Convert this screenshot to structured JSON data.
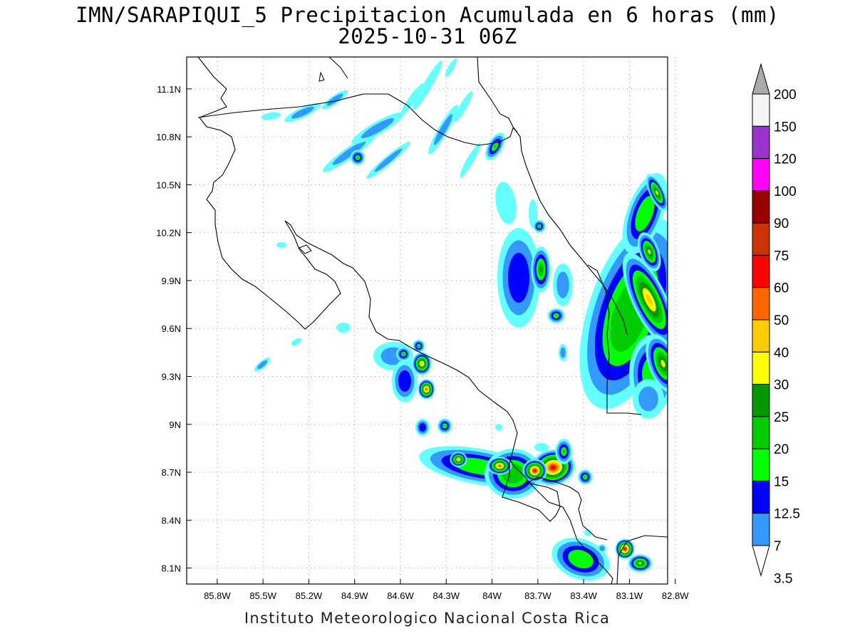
{
  "title": {
    "line1": "IMN/SARAPIQUI_5 Precipitacion Acumulada en 6 horas (mm)",
    "line2": "2025-10-31 06Z"
  },
  "footer": "Instituto Meteorologico Nacional Costa Rica",
  "map": {
    "lon_range": [
      -86.0,
      -82.85
    ],
    "lat_range": [
      8.0,
      11.3
    ],
    "x_ticks": [
      {
        "v": -85.8,
        "label": "85.8W"
      },
      {
        "v": -85.5,
        "label": "85.5W"
      },
      {
        "v": -85.2,
        "label": "85.2W"
      },
      {
        "v": -84.9,
        "label": "84.9W"
      },
      {
        "v": -84.6,
        "label": "84.6W"
      },
      {
        "v": -84.3,
        "label": "84.3W"
      },
      {
        "v": -84.0,
        "label": "84W"
      },
      {
        "v": -83.7,
        "label": "83.7W"
      },
      {
        "v": -83.4,
        "label": "83.4W"
      },
      {
        "v": -83.1,
        "label": "83.1W"
      },
      {
        "v": -82.8,
        "label": "82.8W"
      }
    ],
    "y_ticks": [
      {
        "v": 11.1,
        "label": "11.1N"
      },
      {
        "v": 10.8,
        "label": "10.8N"
      },
      {
        "v": 10.5,
        "label": "10.5N"
      },
      {
        "v": 10.2,
        "label": "10.2N"
      },
      {
        "v": 9.9,
        "label": "9.9N"
      },
      {
        "v": 9.6,
        "label": "9.6N"
      },
      {
        "v": 9.3,
        "label": "9.3N"
      },
      {
        "v": 9.0,
        "label": "9N"
      },
      {
        "v": 8.7,
        "label": "8.7N"
      },
      {
        "v": 8.4,
        "label": "8.4N"
      },
      {
        "v": 8.1,
        "label": "8.1N"
      }
    ],
    "grid": "dotted",
    "colors": [
      "#66ffff",
      "#3399ff",
      "#0000ff",
      "#00ff00",
      "#00cc00",
      "#009900",
      "#ffff00",
      "#ffcc00",
      "#ff6600",
      "#ff0000",
      "#cc3300",
      "#990000",
      "#ff00ff",
      "#9933cc",
      "#f5f5f5",
      "#aaaaaa"
    ],
    "levels": [
      "3.5",
      "7",
      "12.5",
      "15",
      "20",
      "25",
      "30",
      "40",
      "50",
      "60",
      "75",
      "90",
      "100",
      "120",
      "150",
      "200"
    ],
    "rain_cells": [
      {
        "lon": -83.6,
        "lat": 8.73,
        "rx": 0.09,
        "ry": 0.07,
        "rot": -10,
        "lvl": 9
      },
      {
        "lon": -83.72,
        "lat": 8.71,
        "rx": 0.05,
        "ry": 0.045,
        "rot": 0,
        "lvl": 9
      },
      {
        "lon": -83.95,
        "lat": 8.74,
        "rx": 0.05,
        "ry": 0.035,
        "rot": 0,
        "lvl": 8
      },
      {
        "lon": -84.22,
        "lat": 8.78,
        "rx": 0.035,
        "ry": 0.03,
        "rot": 0,
        "lvl": 7
      },
      {
        "lon": -83.53,
        "lat": 8.83,
        "rx": 0.035,
        "ry": 0.05,
        "rot": 0,
        "lvl": 4
      },
      {
        "lon": -84.46,
        "lat": 9.38,
        "rx": 0.04,
        "ry": 0.045,
        "rot": 0,
        "lvl": 7
      },
      {
        "lon": -84.43,
        "lat": 9.22,
        "rx": 0.035,
        "ry": 0.04,
        "rot": 0,
        "lvl": 8
      },
      {
        "lon": -84.31,
        "lat": 8.99,
        "rx": 0.03,
        "ry": 0.03,
        "rot": 0,
        "lvl": 4
      },
      {
        "lon": -84.58,
        "lat": 9.44,
        "rx": 0.03,
        "ry": 0.028,
        "rot": 0,
        "lvl": 4
      },
      {
        "lon": -84.48,
        "lat": 9.49,
        "rx": 0.025,
        "ry": 0.025,
        "rot": 0,
        "lvl": 4
      },
      {
        "lon": -83.39,
        "lat": 8.67,
        "rx": 0.03,
        "ry": 0.03,
        "rot": 0,
        "lvl": 4
      },
      {
        "lon": -83.13,
        "lat": 8.22,
        "rx": 0.04,
        "ry": 0.04,
        "rot": 0,
        "lvl": 9
      },
      {
        "lon": -83.03,
        "lat": 8.13,
        "rx": 0.05,
        "ry": 0.035,
        "rot": 0,
        "lvl": 6
      },
      {
        "lon": -82.97,
        "lat": 9.78,
        "rx": 0.07,
        "ry": 0.2,
        "rot": -25,
        "lvl": 7
      },
      {
        "lon": -82.88,
        "lat": 9.38,
        "rx": 0.06,
        "ry": 0.12,
        "rot": -20,
        "lvl": 6
      },
      {
        "lon": -82.97,
        "lat": 10.08,
        "rx": 0.04,
        "ry": 0.08,
        "rot": -20,
        "lvl": 6
      },
      {
        "lon": -82.92,
        "lat": 10.45,
        "rx": 0.03,
        "ry": 0.08,
        "rot": -25,
        "lvl": 6
      },
      {
        "lon": -83.68,
        "lat": 9.97,
        "rx": 0.04,
        "ry": 0.09,
        "rot": 0,
        "lvl": 5
      },
      {
        "lon": -83.69,
        "lat": 10.24,
        "rx": 0.025,
        "ry": 0.025,
        "rot": 0,
        "lvl": 4
      },
      {
        "lon": -83.58,
        "lat": 9.68,
        "rx": 0.035,
        "ry": 0.03,
        "rot": 0,
        "lvl": 4
      },
      {
        "lon": -83.98,
        "lat": 10.74,
        "rx": 0.03,
        "ry": 0.06,
        "rot": 30,
        "lvl": 4
      },
      {
        "lon": -84.88,
        "lat": 10.67,
        "rx": 0.03,
        "ry": 0.03,
        "rot": 0,
        "lvl": 4
      }
    ]
  }
}
